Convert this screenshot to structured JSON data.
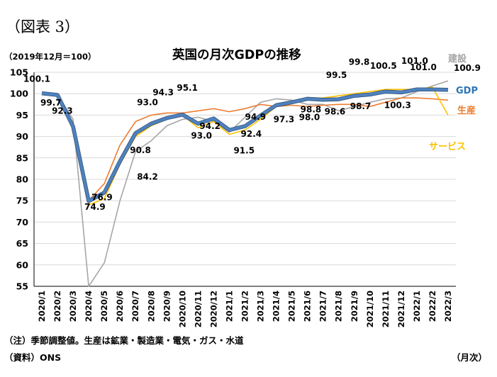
{
  "figure_label": "（図表 3）",
  "unit_label": "（2019年12月＝100）",
  "note": "（注）季節調整値。生産は鉱業・製造業・電気・ガス・水道",
  "source": "（資料）ONS",
  "x_unit": "（月次）",
  "chart_data": {
    "type": "line",
    "title": "英国の月次GDPの推移",
    "ylim": [
      55,
      105
    ],
    "yticks": [
      55,
      60,
      65,
      70,
      75,
      80,
      85,
      90,
      95,
      100,
      105
    ],
    "grid": "horizontal",
    "categories": [
      "2020/1",
      "2020/2",
      "2020/3",
      "2020/4",
      "2020/5",
      "2020/6",
      "2020/7",
      "2020/8",
      "2020/9",
      "2020/10",
      "2020/11",
      "2020/12",
      "2021/1",
      "2021/2",
      "2021/3",
      "2021/4",
      "2021/5",
      "2021/6",
      "2021/7",
      "2021/8",
      "2021/9",
      "2021/10",
      "2021/11",
      "2021/12",
      "2022/1",
      "2022/2",
      "2022/3"
    ],
    "series": [
      {
        "name": "建設",
        "color": "#a6a6a6",
        "values": [
          100.0,
          99.8,
          94.0,
          55.0,
          60.5,
          75.0,
          86.5,
          89.0,
          92.5,
          94.0,
          94.5,
          93.5,
          91.0,
          94.5,
          98.0,
          98.8,
          98.5,
          97.5,
          97.5,
          96.0,
          97.0,
          98.0,
          98.8,
          99.0,
          100.5,
          101.8,
          103.0
        ]
      },
      {
        "name": "生産",
        "color": "#ed7d31",
        "values": [
          100.0,
          99.7,
          93.0,
          75.0,
          79.0,
          88.0,
          93.5,
          95.0,
          95.5,
          95.5,
          96.0,
          96.5,
          95.8,
          96.5,
          97.5,
          97.0,
          97.3,
          97.0,
          97.3,
          97.5,
          97.5,
          97.0,
          98.0,
          99.0,
          99.0,
          98.8,
          98.5
        ]
      },
      {
        "name": "サービス",
        "color": "#ffc000",
        "values": [
          100.0,
          99.8,
          91.5,
          74.0,
          75.5,
          83.5,
          90.0,
          92.5,
          94.0,
          95.0,
          92.0,
          93.5,
          90.5,
          91.5,
          94.0,
          97.0,
          98.0,
          99.0,
          99.0,
          99.5,
          100.0,
          100.5,
          101.0,
          101.0,
          101.0,
          101.5,
          95.0
        ]
      },
      {
        "name": "GDP",
        "color": "#4f81bd",
        "values": [
          100.1,
          99.7,
          92.3,
          74.9,
          76.9,
          84.2,
          90.8,
          93.0,
          94.3,
          95.1,
          93.0,
          94.2,
          91.5,
          92.4,
          94.9,
          97.3,
          98.0,
          98.8,
          98.6,
          98.7,
          99.5,
          99.8,
          100.5,
          100.3,
          101.0,
          101.0,
          100.9
        ]
      }
    ],
    "data_labels": [
      "100.1",
      "99.7",
      "92.3",
      "74.9",
      "76.9",
      "84.2",
      "90.8",
      "93.0",
      "94.3",
      "95.1",
      "93.0",
      "94.2",
      "91.5",
      "92.4",
      "94.9",
      "97.3",
      "98.0",
      "98.8",
      "98.6",
      "98.7",
      "99.5",
      "99.8",
      "100.5",
      "100.3",
      "101.0",
      "101.0",
      "100.9"
    ],
    "series_labels": [
      "建設",
      "GDP",
      "生産",
      "サービス"
    ]
  }
}
